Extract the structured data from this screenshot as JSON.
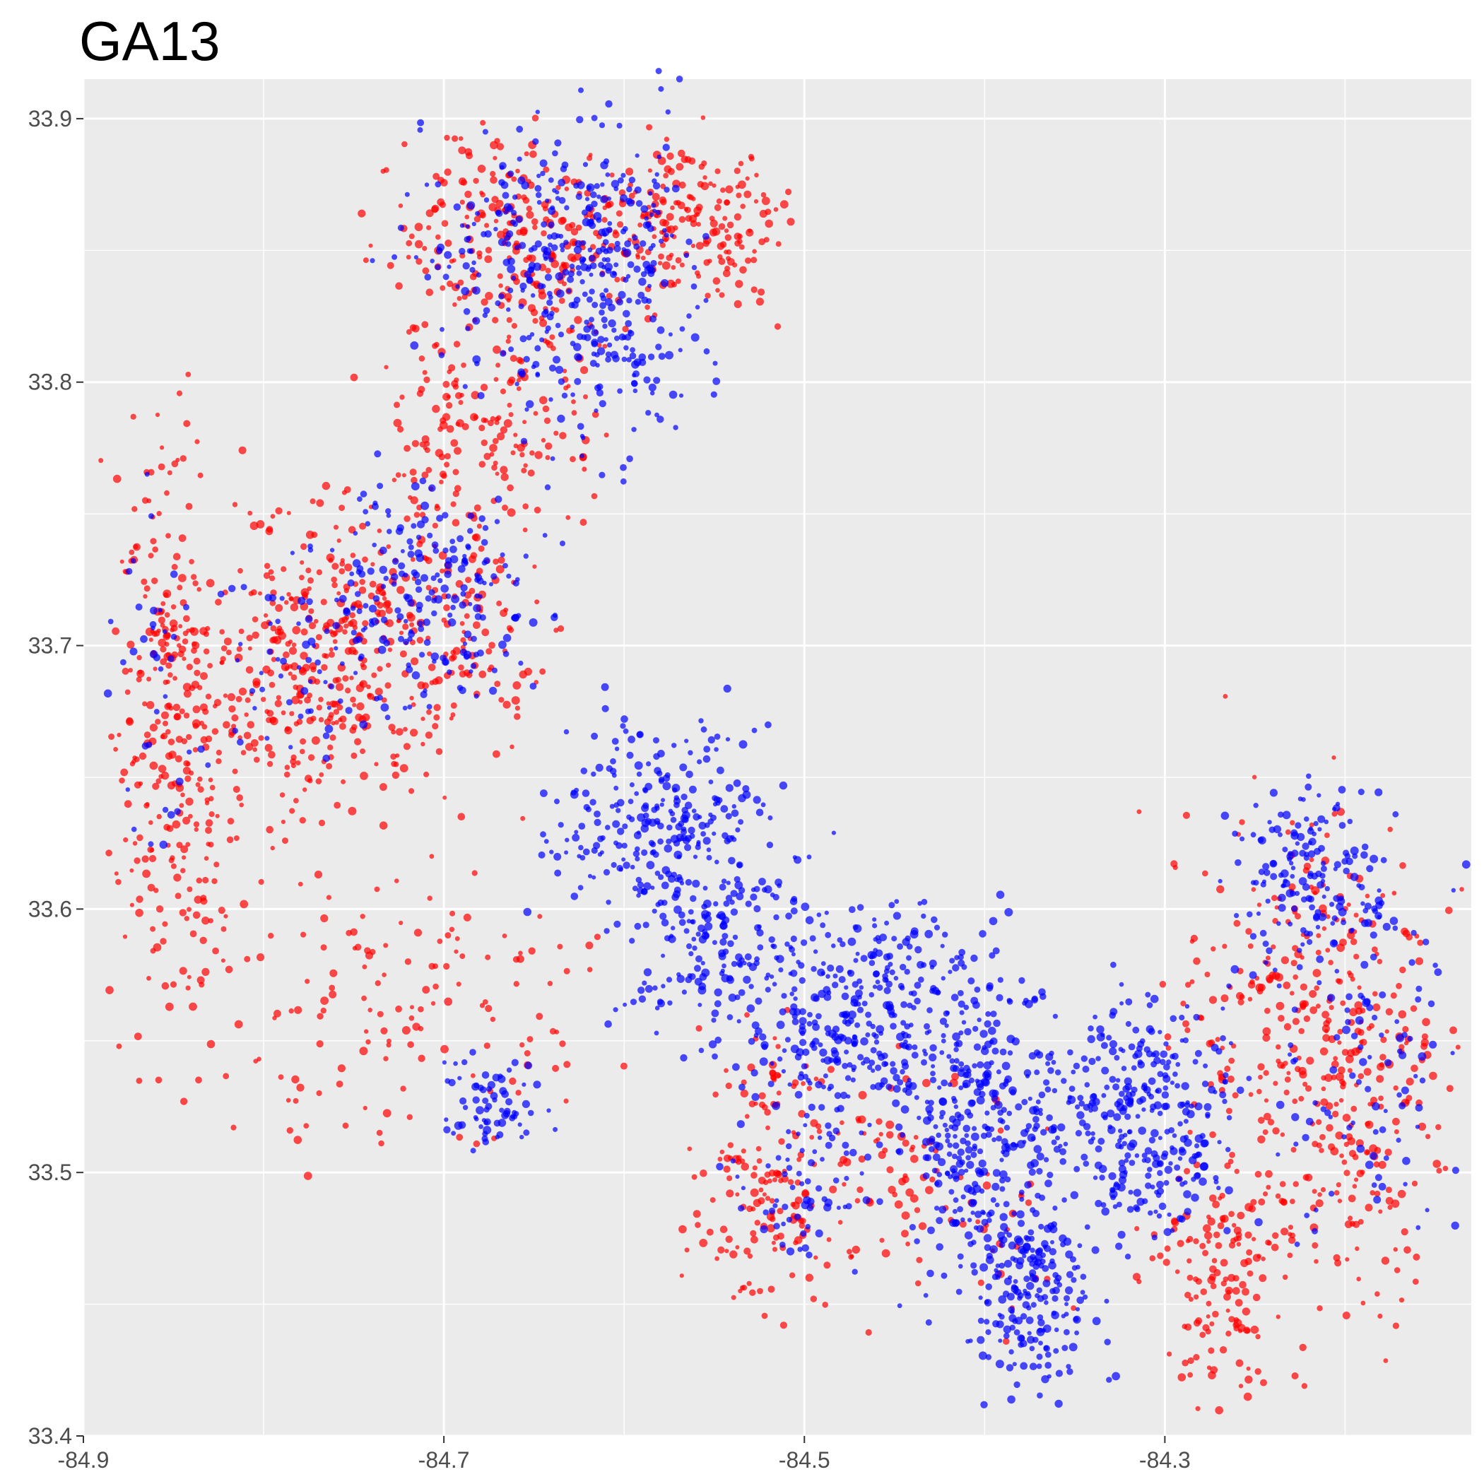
{
  "chart_data": {
    "type": "scatter",
    "title": "GA13",
    "xlabel": "",
    "ylabel": "",
    "xlim": [
      -84.9,
      -84.13
    ],
    "ylim": [
      33.4,
      33.915
    ],
    "x_ticks": [
      -84.9,
      -84.7,
      -84.5,
      -84.3
    ],
    "x_tick_labels": [
      "-84.9",
      "-84.7",
      "-84.5",
      "-84.3"
    ],
    "y_ticks": [
      33.4,
      33.5,
      33.6,
      33.7,
      33.8,
      33.9
    ],
    "y_tick_labels": [
      "33.4",
      "33.5",
      "33.6",
      "33.7",
      "33.8",
      "33.9"
    ],
    "grid": true,
    "background": "#ebebeb",
    "legend": "none",
    "series": [
      {
        "color": "#ff0000",
        "clusters": [
          {
            "x": [
              -84.72,
              -84.6
            ],
            "y": [
              33.82,
              33.89
            ],
            "n": 240
          },
          {
            "x": [
              -84.62,
              -84.52
            ],
            "y": [
              33.83,
              33.89
            ],
            "n": 200
          },
          {
            "x": [
              -84.73,
              -84.62
            ],
            "y": [
              33.75,
              33.82
            ],
            "n": 170
          },
          {
            "x": [
              -84.88,
              -84.82
            ],
            "y": [
              33.57,
              33.77
            ],
            "n": 320
          },
          {
            "x": [
              -84.82,
              -84.72
            ],
            "y": [
              33.64,
              33.75
            ],
            "n": 330
          },
          {
            "x": [
              -84.75,
              -84.65
            ],
            "y": [
              33.66,
              33.76
            ],
            "n": 160
          },
          {
            "x": [
              -84.82,
              -84.62
            ],
            "y": [
              33.51,
              33.62
            ],
            "n": 150
          },
          {
            "x": [
              -84.56,
              -84.48
            ],
            "y": [
              33.45,
              33.55
            ],
            "n": 170
          },
          {
            "x": [
              -84.48,
              -84.42
            ],
            "y": [
              33.47,
              33.54
            ],
            "n": 60
          },
          {
            "x": [
              -84.3,
              -84.24
            ],
            "y": [
              33.42,
              33.5
            ],
            "n": 140
          },
          {
            "x": [
              -84.24,
              -84.15
            ],
            "y": [
              33.45,
              33.62
            ],
            "n": 240
          },
          {
            "x": [
              -84.3,
              -84.17
            ],
            "y": [
              33.49,
              33.64
            ],
            "n": 180
          },
          {
            "x": [
              -84.42,
              -84.36
            ],
            "y": [
              33.44,
              33.52
            ],
            "n": 30
          }
        ]
      },
      {
        "color": "#0000ff",
        "clusters": [
          {
            "x": [
              -84.66,
              -84.56
            ],
            "y": [
              33.78,
              33.89
            ],
            "n": 300
          },
          {
            "x": [
              -84.72,
              -84.6
            ],
            "y": [
              33.81,
              33.89
            ],
            "n": 140
          },
          {
            "x": [
              -84.75,
              -84.65
            ],
            "y": [
              33.68,
              33.76
            ],
            "n": 180
          },
          {
            "x": [
              -84.64,
              -84.52
            ],
            "y": [
              33.6,
              33.67
            ],
            "n": 260
          },
          {
            "x": [
              -84.6,
              -84.5
            ],
            "y": [
              33.55,
              33.62
            ],
            "n": 180
          },
          {
            "x": [
              -84.52,
              -84.42
            ],
            "y": [
              33.52,
              33.6
            ],
            "n": 300
          },
          {
            "x": [
              -84.44,
              -84.36
            ],
            "y": [
              33.46,
              33.58
            ],
            "n": 380
          },
          {
            "x": [
              -84.4,
              -84.34
            ],
            "y": [
              33.42,
              33.48
            ],
            "n": 180
          },
          {
            "x": [
              -84.36,
              -84.26
            ],
            "y": [
              33.48,
              33.56
            ],
            "n": 330
          },
          {
            "x": [
              -84.26,
              -84.18
            ],
            "y": [
              33.58,
              33.645
            ],
            "n": 170
          },
          {
            "x": [
              -84.24,
              -84.14
            ],
            "y": [
              33.48,
              33.6
            ],
            "n": 100
          },
          {
            "x": [
              -84.7,
              -84.64
            ],
            "y": [
              33.51,
              33.54
            ],
            "n": 70
          },
          {
            "x": [
              -84.82,
              -84.72
            ],
            "y": [
              33.66,
              33.74
            ],
            "n": 80
          },
          {
            "x": [
              -84.88,
              -84.82
            ],
            "y": [
              33.6,
              33.76
            ],
            "n": 40
          },
          {
            "x": [
              -84.54,
              -84.46
            ],
            "y": [
              33.47,
              33.52
            ],
            "n": 70
          }
        ]
      }
    ]
  }
}
